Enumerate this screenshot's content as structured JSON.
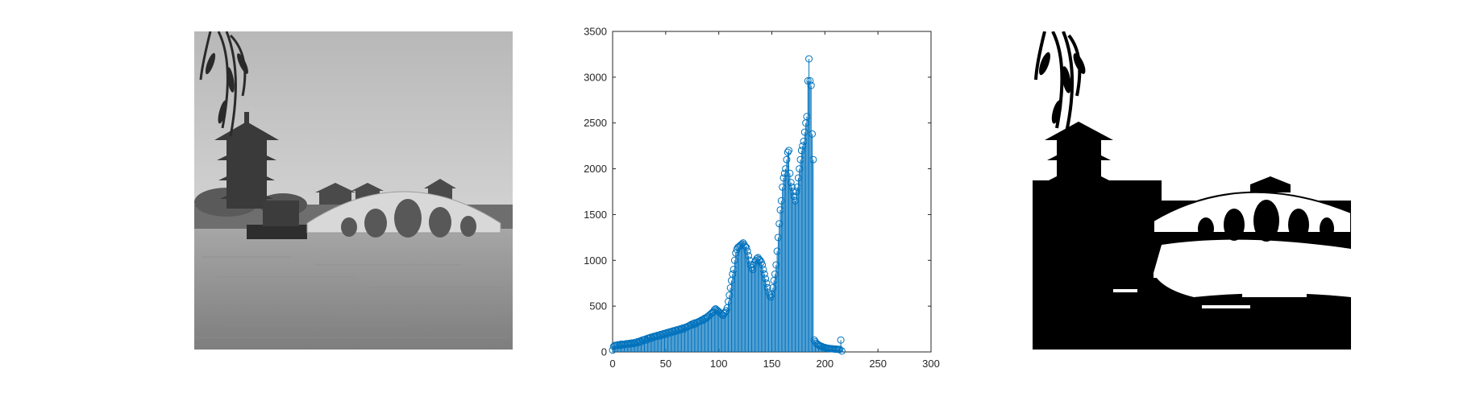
{
  "figure": {
    "panels": [
      {
        "kind": "image",
        "content": "grayscale photo of lake with pagoda and arched bridge"
      },
      {
        "kind": "chart"
      },
      {
        "kind": "image",
        "content": "binary thresholded version of photo"
      }
    ]
  },
  "colors": {
    "stem": "#0072BD",
    "axis": "#262626",
    "background": "#ffffff"
  },
  "chart_data": {
    "type": "stem",
    "title": "",
    "xlabel": "",
    "ylabel": "",
    "xlim": [
      0,
      300
    ],
    "ylim": [
      0,
      3500
    ],
    "xticks": [
      0,
      50,
      100,
      150,
      200,
      250,
      300
    ],
    "yticks": [
      0,
      500,
      1000,
      1500,
      2000,
      2500,
      3000,
      3500
    ],
    "grid": false,
    "legend": "none",
    "marker": "circle",
    "x_range": [
      0,
      255
    ],
    "values": [
      20,
      60,
      70,
      72,
      75,
      78,
      70,
      80,
      85,
      75,
      82,
      85,
      80,
      90,
      88,
      92,
      85,
      95,
      98,
      90,
      100,
      95,
      105,
      110,
      100,
      115,
      120,
      110,
      130,
      125,
      135,
      140,
      130,
      150,
      145,
      155,
      160,
      150,
      165,
      170,
      165,
      175,
      180,
      170,
      185,
      190,
      180,
      195,
      200,
      190,
      205,
      210,
      200,
      215,
      220,
      210,
      225,
      230,
      220,
      235,
      240,
      230,
      245,
      250,
      240,
      255,
      260,
      250,
      265,
      270,
      270,
      280,
      285,
      290,
      300,
      295,
      310,
      315,
      305,
      320,
      325,
      330,
      335,
      340,
      350,
      345,
      360,
      370,
      365,
      380,
      390,
      400,
      410,
      420,
      430,
      440,
      460,
      470,
      460,
      450,
      440,
      430,
      420,
      410,
      400,
      420,
      430,
      450,
      480,
      550,
      620,
      700,
      780,
      850,
      900,
      1000,
      1080,
      1120,
      1140,
      1150,
      1160,
      1170,
      1180,
      1190,
      1170,
      1150,
      1140,
      1100,
      1050,
      1000,
      950,
      920,
      900,
      950,
      980,
      1000,
      1020,
      1030,
      1010,
      1000,
      980,
      950,
      900,
      850,
      800,
      750,
      700,
      650,
      620,
      600,
      630,
      700,
      780,
      850,
      950,
      1100,
      1250,
      1400,
      1550,
      1650,
      1800,
      1900,
      1950,
      2000,
      2100,
      2180,
      2200,
      1950,
      1850,
      1800,
      1750,
      1700,
      1650,
      1750,
      1800,
      1900,
      2000,
      2100,
      2200,
      2250,
      2300,
      2400,
      2500,
      2570,
      2960,
      3200,
      2960,
      2910,
      2380,
      2100,
      130,
      110,
      95,
      85,
      75,
      70,
      65,
      60,
      55,
      50,
      48,
      45,
      42,
      40,
      38,
      36,
      35,
      34,
      33,
      32,
      31,
      30,
      29,
      28,
      27,
      130,
      10
    ]
  }
}
